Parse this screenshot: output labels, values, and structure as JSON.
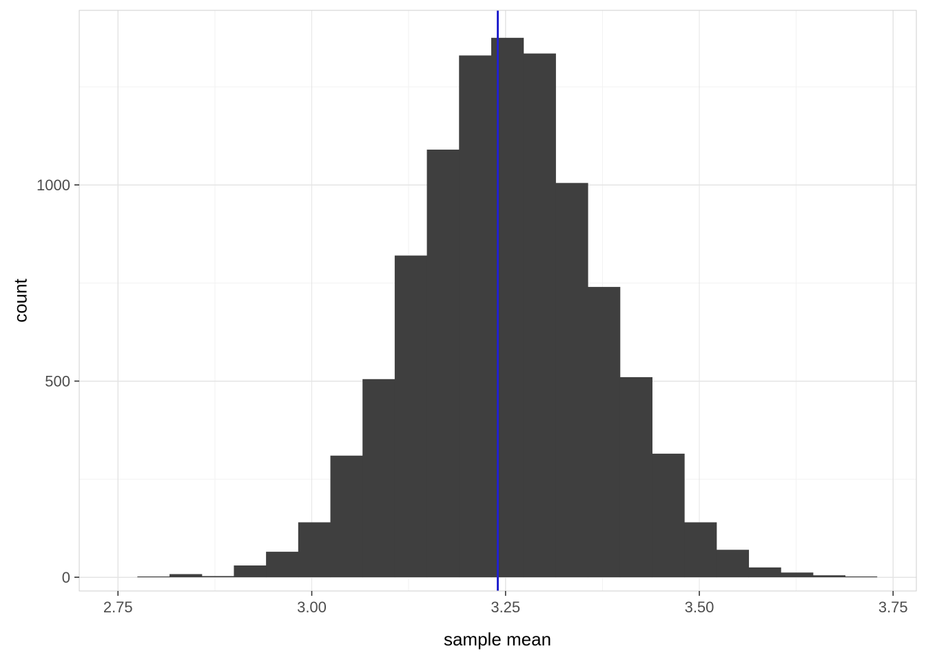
{
  "chart_data": {
    "type": "histogram",
    "title": "",
    "xlabel": "sample mean",
    "ylabel": "count",
    "bin_start": 2.775,
    "bin_width": 0.0415,
    "counts": [
      2,
      8,
      3,
      30,
      65,
      140,
      310,
      505,
      820,
      1090,
      1330,
      1375,
      1335,
      1005,
      740,
      510,
      315,
      140,
      70,
      25,
      12,
      5,
      2
    ],
    "vline_x": 3.24,
    "x_ticks": [
      2.75,
      3.0,
      3.25,
      3.5,
      3.75
    ],
    "x_tick_labels": [
      "2.75",
      "3.00",
      "3.25",
      "3.50",
      "3.75"
    ],
    "y_ticks": [
      0,
      500,
      1000
    ],
    "y_tick_labels": [
      "0",
      "500",
      "1000"
    ],
    "x_minor_ticks": [
      2.875,
      3.125,
      3.375,
      3.625
    ],
    "y_minor_ticks": [
      250,
      750,
      1250
    ],
    "xlim": [
      2.7,
      3.78
    ],
    "ylim": [
      -35,
      1445
    ],
    "legend": "none",
    "grid": "on",
    "colors": {
      "bar": "#3f3f3f",
      "vline": "#2121cd",
      "grid_major": "#e4e4e4",
      "grid_minor": "#f2f2f2",
      "panel_border": "#cfcfcf",
      "tick_mark": "#333333",
      "tick_label": "#4d4d4d",
      "axis_title": "#000000",
      "background": "#ffffff"
    }
  }
}
